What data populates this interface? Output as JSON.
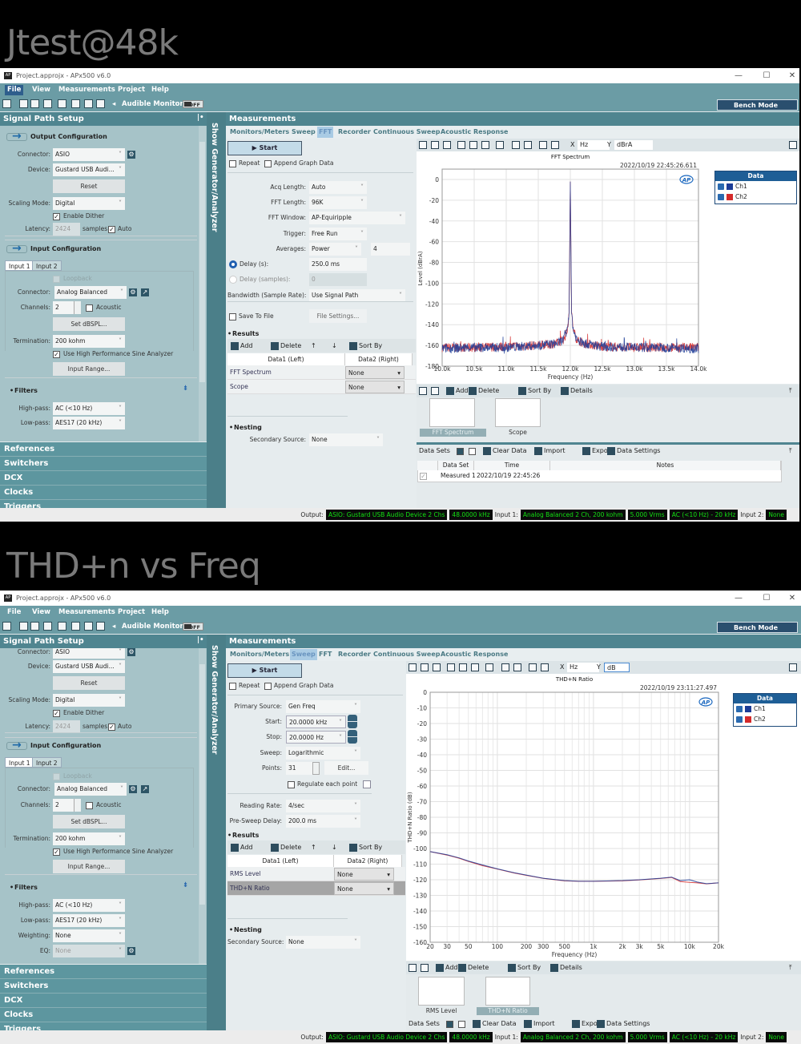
{
  "captions": [
    "Jtest@48k",
    "THD+n vs Freq"
  ],
  "windows": [
    {
      "title": "Project.approjx - APx500 v6.0",
      "menu": [
        "File",
        "View",
        "Measurements",
        "Project",
        "Help"
      ],
      "menu_selected": "File",
      "audible_monitor": "Audible Monitor",
      "monitor_state": "OFF",
      "bench_mode": "Bench Mode",
      "signal_path_title": "Signal Path Setup",
      "strip_label": "Show Generator/Analyzer",
      "measurements_title": "Measurements",
      "tabs": [
        "Monitors/Meters",
        "Sweep",
        "FFT",
        "Recorder",
        "Continuous Sweep",
        "Acoustic Response"
      ],
      "active_tab": "FFT",
      "sidebar_rows": [
        {
          "kind": "header",
          "label": "Output Configuration"
        },
        {
          "kind": "field",
          "label": "Connector:",
          "value": "ASIO",
          "gear": true
        },
        {
          "kind": "field",
          "label": "Device:",
          "value": "Gustard USB Audi..."
        },
        {
          "kind": "button",
          "label": "Reset"
        },
        {
          "kind": "field",
          "label": "Scaling Mode:",
          "value": "Digital"
        },
        {
          "kind": "check",
          "label": "Enable Dither",
          "checked": true
        },
        {
          "kind": "latency",
          "label": "Latency:",
          "value": "2424",
          "unit": "samples",
          "auto_label": "Auto",
          "checked": true
        },
        {
          "kind": "header",
          "label": "Input Configuration"
        },
        {
          "kind": "tabs",
          "tabs": [
            "Input 1",
            "Input 2"
          ]
        },
        {
          "kind": "check",
          "label": "Loopback",
          "checked": false,
          "disabled": true
        },
        {
          "kind": "field",
          "label": "Connector:",
          "value": "Analog Balanced",
          "gear": true,
          "extra": true
        },
        {
          "kind": "channels",
          "label": "Channels:",
          "value": "2",
          "check_label": "Acoustic",
          "checked": false
        },
        {
          "kind": "button",
          "label": "Set dBSPL..."
        },
        {
          "kind": "field",
          "label": "Termination:",
          "value": "200 kohm"
        },
        {
          "kind": "check",
          "label": "Use High Performance Sine Analyzer",
          "checked": true
        },
        {
          "kind": "button",
          "label": "Input Range..."
        },
        {
          "kind": "section",
          "label": "Filters"
        },
        {
          "kind": "field",
          "label": "High-pass:",
          "value": "AC (<10 Hz)"
        },
        {
          "kind": "field",
          "label": "Low-pass:",
          "value": "AES17 (20 kHz)"
        }
      ],
      "sidebar_sections": [
        "References",
        "Switchers",
        "DCX",
        "Clocks",
        "Triggers"
      ],
      "start_label": "Start",
      "repeat_label": "Repeat",
      "append_label": "Append Graph Data",
      "config_rows": [
        {
          "kind": "field",
          "label": "Acq Length:",
          "value": "Auto"
        },
        {
          "kind": "field",
          "label": "FFT Length:",
          "value": "96K"
        },
        {
          "kind": "field",
          "label": "FFT Window:",
          "value": "AP-Equiripple"
        },
        {
          "kind": "field",
          "label": "Trigger:",
          "value": "Free Run"
        },
        {
          "kind": "averages",
          "label": "Averages:",
          "value": "Power",
          "count": "4"
        },
        {
          "kind": "radio",
          "label": "Delay (s):",
          "value": "250.0 ms",
          "selected": true
        },
        {
          "kind": "radio",
          "label": "Delay (samples):",
          "value": "0",
          "selected": false,
          "disabled": true
        },
        {
          "kind": "field",
          "label": "Bandwidth (Sample Rate):",
          "value": "Use Signal Path"
        },
        {
          "kind": "save",
          "label": "Save To File",
          "button": "File Settings...",
          "checked": false
        }
      ],
      "results": {
        "title": "Results",
        "add": "Add",
        "delete": "Delete",
        "sort_by": "Sort By",
        "headers": [
          "Data1 (Left)",
          "Data2 (Right)"
        ],
        "rows": [
          {
            "name": "FFT Spectrum",
            "data2": "None"
          },
          {
            "name": "Scope",
            "data2": "None"
          }
        ],
        "selected": -1
      },
      "nesting": {
        "title": "Nesting",
        "secondary_label": "Secondary Source:",
        "secondary_value": "None"
      },
      "graph": {
        "x_unit": "Hz",
        "y_unit": "dBrA",
        "legend_title": "Data",
        "legend": [
          {
            "name": "Ch1",
            "checked": true
          },
          {
            "name": "Ch2",
            "checked": true
          }
        ]
      },
      "graph_toolbar": {
        "add": "Add",
        "delete": "Delete",
        "sort_by": "Sort By",
        "details": "Details"
      },
      "thumbnails": [
        {
          "label": "FFT Spectrum",
          "selected": true
        },
        {
          "label": "Scope",
          "selected": false
        }
      ],
      "data_sets": {
        "label": "Data Sets",
        "clear": "Clear Data",
        "import": "Import",
        "export": "Export",
        "settings": "Data Settings",
        "headers": [
          "Data Set",
          "Time",
          "Notes"
        ],
        "rows": [
          {
            "name": "Measured 1",
            "time": "2022/10/19 22:45:26",
            "notes": "",
            "checked": true
          }
        ]
      },
      "status": {
        "output_label": "Output:",
        "output": "ASIO: Gustard USB Audio Device 2 Chs",
        "rate": "48.0000 kHz",
        "input1_label": "Input 1:",
        "input1": "Analog Balanced 2 Ch, 200 kohm",
        "range": "5.000 Vrms",
        "filter": "AC (<10 Hz) - 20 kHz",
        "input2_label": "Input 2:",
        "input2": "None"
      }
    },
    {
      "title": "Project.approjx - APx500 v6.0",
      "menu": [
        "File",
        "View",
        "Measurements",
        "Project",
        "Help"
      ],
      "menu_selected": "",
      "audible_monitor": "Audible Monitor",
      "monitor_state": "OFF",
      "bench_mode": "Bench Mode",
      "signal_path_title": "Signal Path Setup",
      "strip_label": "Show Generator/Analyzer",
      "measurements_title": "Measurements",
      "tabs": [
        "Monitors/Meters",
        "Sweep",
        "FFT",
        "Recorder",
        "Continuous Sweep",
        "Acoustic Response"
      ],
      "active_tab": "Sweep",
      "sidebar_rows": [
        {
          "kind": "field",
          "label": "Connector:",
          "value": "ASIO",
          "gear": true
        },
        {
          "kind": "field",
          "label": "Device:",
          "value": "Gustard USB Audi..."
        },
        {
          "kind": "button",
          "label": "Reset"
        },
        {
          "kind": "field",
          "label": "Scaling Mode:",
          "value": "Digital"
        },
        {
          "kind": "check",
          "label": "Enable Dither",
          "checked": true
        },
        {
          "kind": "latency",
          "label": "Latency:",
          "value": "2424",
          "unit": "samples",
          "auto_label": "Auto",
          "checked": true
        },
        {
          "kind": "header",
          "label": "Input Configuration"
        },
        {
          "kind": "tabs",
          "tabs": [
            "Input 1",
            "Input 2"
          ]
        },
        {
          "kind": "check",
          "label": "Loopback",
          "checked": false,
          "disabled": true
        },
        {
          "kind": "field",
          "label": "Connector:",
          "value": "Analog Balanced",
          "gear": true,
          "extra": true
        },
        {
          "kind": "channels",
          "label": "Channels:",
          "value": "2",
          "check_label": "Acoustic",
          "checked": false
        },
        {
          "kind": "button",
          "label": "Set dBSPL..."
        },
        {
          "kind": "field",
          "label": "Termination:",
          "value": "200 kohm"
        },
        {
          "kind": "check",
          "label": "Use High Performance Sine Analyzer",
          "checked": true
        },
        {
          "kind": "button",
          "label": "Input Range..."
        },
        {
          "kind": "section",
          "label": "Filters"
        },
        {
          "kind": "field",
          "label": "High-pass:",
          "value": "AC (<10 Hz)"
        },
        {
          "kind": "field",
          "label": "Low-pass:",
          "value": "AES17 (20 kHz)"
        },
        {
          "kind": "field",
          "label": "Weighting:",
          "value": "None"
        },
        {
          "kind": "field",
          "label": "EQ:",
          "value": "None",
          "disabled": true,
          "gear": true
        }
      ],
      "sidebar_sections": [
        "References",
        "Switchers",
        "DCX",
        "Clocks",
        "Triggers"
      ],
      "start_label": "Start",
      "repeat_label": "Repeat",
      "append_label": "Append Graph Data",
      "config_rows": [
        {
          "kind": "field",
          "label": "Primary Source:",
          "value": "Gen Freq"
        },
        {
          "kind": "spin",
          "label": "Start:",
          "value": "20.0000 kHz"
        },
        {
          "kind": "spin",
          "label": "Stop:",
          "value": "20.0000 Hz"
        },
        {
          "kind": "field",
          "label": "Sweep:",
          "value": "Logarithmic"
        },
        {
          "kind": "points",
          "label": "Points:",
          "value": "31",
          "button": "Edit..."
        },
        {
          "kind": "regulate",
          "label": "Regulate each point",
          "checked": false
        },
        {
          "kind": "field",
          "label": "Reading Rate:",
          "value": "4/sec"
        },
        {
          "kind": "field",
          "label": "Pre-Sweep Delay:",
          "value": "200.0 ms"
        }
      ],
      "results": {
        "title": "Results",
        "add": "Add",
        "delete": "Delete",
        "sort_by": "Sort By",
        "headers": [
          "Data1 (Left)",
          "Data2 (Right)"
        ],
        "rows": [
          {
            "name": "RMS Level",
            "data2": "None"
          },
          {
            "name": "THD+N Ratio",
            "data2": "None"
          }
        ],
        "selected": 1
      },
      "nesting": {
        "title": "Nesting",
        "secondary_label": "Secondary Source:",
        "secondary_value": "None"
      },
      "graph": {
        "x_unit": "Hz",
        "y_unit": "dB",
        "legend_title": "Data",
        "legend": [
          {
            "name": "Ch1",
            "checked": true
          },
          {
            "name": "Ch2",
            "checked": true
          }
        ]
      },
      "graph_toolbar": {
        "add": "Add",
        "delete": "Delete",
        "sort_by": "Sort By",
        "details": "Details"
      },
      "thumbnails": [
        {
          "label": "RMS Level",
          "selected": false
        },
        {
          "label": "THD+N Ratio",
          "selected": true
        }
      ],
      "data_sets": {
        "label": "Data Sets",
        "clear": "Clear Data",
        "import": "Import",
        "export": "Export",
        "settings": "Data Settings",
        "headers": [],
        "rows": []
      },
      "status": {
        "output_label": "Output:",
        "output": "ASIO: Gustard USB Audio Device 2 Chs",
        "rate": "48.0000 kHz",
        "input1_label": "Input 1:",
        "input1": "Analog Balanced 2 Ch, 200 kohm",
        "range": "5.000 Vrms",
        "filter": "AC (<10 Hz) - 20 kHz",
        "input2_label": "Input 2:",
        "input2": "None"
      }
    }
  ],
  "chart_data": [
    {
      "type": "line",
      "title": "FFT Spectrum",
      "timestamp": "2022/10/19 22:45:26.611",
      "xlabel": "Frequency (Hz)",
      "ylabel": "Level (dBrA)",
      "x_scale": "linear",
      "xlim": [
        10000,
        14000
      ],
      "ylim": [
        -180,
        10
      ],
      "xticks": [
        10000,
        10500,
        11000,
        11500,
        12000,
        12500,
        13000,
        13500,
        14000
      ],
      "xtick_labels": [
        "10.0k",
        "10.5k",
        "11.0k",
        "11.5k",
        "12.0k",
        "12.5k",
        "13.0k",
        "13.5k",
        "14.0k"
      ],
      "yticks": [
        0,
        -20,
        -40,
        -60,
        -80,
        -100,
        -120,
        -140,
        -160,
        -180
      ],
      "grid": true,
      "legend": "right",
      "series": [
        {
          "name": "Ch1",
          "color": "#1c3c96",
          "x": [
            10000,
            10500,
            11000,
            11500,
            11800,
            11900,
            11950,
            11980,
            12000,
            12020,
            12050,
            12100,
            12200,
            12500,
            13000,
            13500,
            14000
          ],
          "y": [
            -163,
            -162,
            -162,
            -160,
            -158,
            -154,
            -146,
            -130,
            -2,
            -130,
            -146,
            -154,
            -158,
            -161,
            -162,
            -162,
            -163
          ]
        },
        {
          "name": "Ch2",
          "color": "#d42a2a",
          "x": [
            10000,
            10500,
            11000,
            11500,
            11800,
            11900,
            11950,
            11980,
            12000,
            12020,
            12050,
            12100,
            12200,
            12500,
            13000,
            13500,
            14000
          ],
          "y": [
            -162,
            -162,
            -161,
            -160,
            -158,
            -154,
            -146,
            -130,
            -2,
            -130,
            -146,
            -154,
            -158,
            -161,
            -162,
            -162,
            -162
          ]
        }
      ]
    },
    {
      "type": "line",
      "title": "THD+N Ratio",
      "timestamp": "2022/10/19 23:11:27.497",
      "xlabel": "Frequency (Hz)",
      "ylabel": "THD+N Ratio (dB)",
      "x_scale": "log",
      "xlim": [
        20,
        20000
      ],
      "ylim": [
        -160,
        0
      ],
      "xticks": [
        20,
        30,
        50,
        100,
        200,
        300,
        500,
        1000,
        2000,
        3000,
        5000,
        10000,
        20000
      ],
      "xtick_labels": [
        "20",
        "30",
        "50",
        "100",
        "200",
        "300",
        "500",
        "1k",
        "2k",
        "3k",
        "5k",
        "10k",
        "20k"
      ],
      "yticks": [
        0,
        -10,
        -20,
        -30,
        -40,
        -50,
        -60,
        -70,
        -80,
        -90,
        -100,
        -110,
        -120,
        -130,
        -140,
        -150,
        -160
      ],
      "grid": true,
      "legend": "right",
      "series": [
        {
          "name": "Ch1",
          "color": "#1c3c96",
          "x": [
            20,
            30,
            40,
            50,
            70,
            100,
            150,
            200,
            300,
            500,
            700,
            1000,
            2000,
            3000,
            5000,
            6500,
            8000,
            10000,
            12000,
            15000,
            20000
          ],
          "y": [
            -102,
            -104,
            -106,
            -108,
            -110.5,
            -113,
            -115.5,
            -117,
            -119,
            -120.5,
            -121,
            -121,
            -120.5,
            -120,
            -119,
            -118.3,
            -120.5,
            -120,
            -121.5,
            -122.5,
            -122
          ]
        },
        {
          "name": "Ch2",
          "color": "#d42a2a",
          "x": [
            20,
            30,
            40,
            50,
            70,
            100,
            150,
            200,
            300,
            500,
            700,
            1000,
            2000,
            3000,
            5000,
            6500,
            8000,
            10000,
            12000,
            15000,
            20000
          ],
          "y": [
            -102,
            -104.2,
            -106.2,
            -108.3,
            -111,
            -113.2,
            -115.7,
            -117.2,
            -119.1,
            -120.7,
            -121,
            -121,
            -120.7,
            -120.1,
            -119.2,
            -118.5,
            -121.2,
            -121.7,
            -122,
            -122.6,
            -122
          ]
        }
      ]
    }
  ]
}
